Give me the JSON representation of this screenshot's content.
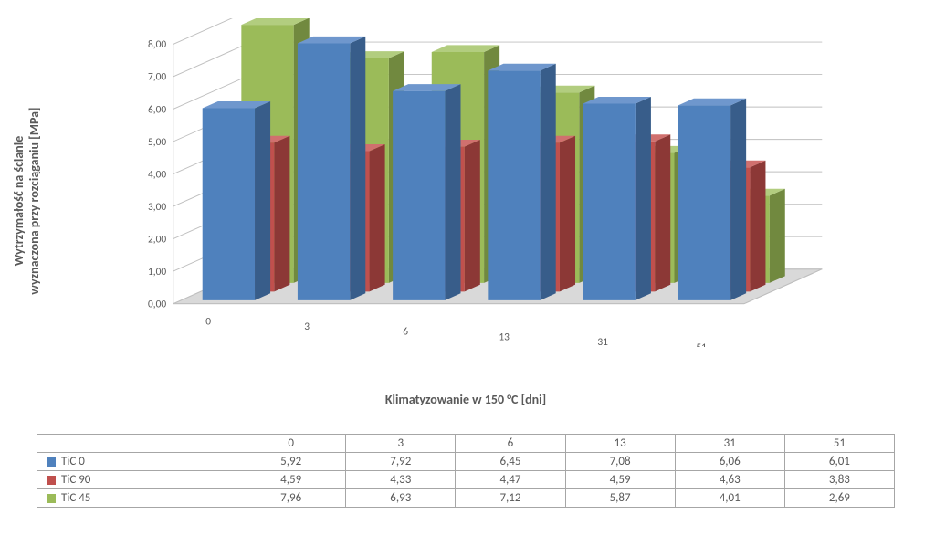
{
  "chart": {
    "type": "bar3d",
    "y_axis_label": "Wytrzymałość na ścianie\nwyznaczona przy rozciąganiu [MPa]",
    "x_axis_label": "Klimatyzowanie w 150 °C [dni]",
    "ylim": [
      0,
      8
    ],
    "ytick_step": 1.0,
    "y_ticks": [
      "0,00",
      "1,00",
      "2,00",
      "3,00",
      "4,00",
      "5,00",
      "6,00",
      "7,00",
      "8,00"
    ],
    "categories": [
      "0",
      "3",
      "6",
      "13",
      "31",
      "51"
    ],
    "series": [
      {
        "name": "TiC 0",
        "color": "#4f81bd",
        "side": "#385d8a",
        "top": "#6f97cd",
        "values": [
          5.92,
          7.92,
          6.45,
          7.08,
          6.06,
          6.01
        ],
        "display": [
          "5,92",
          "7,92",
          "6,45",
          "7,08",
          "6,06",
          "6,01"
        ]
      },
      {
        "name": "TiC 90",
        "color": "#c0504d",
        "side": "#8c3836",
        "top": "#d0706e",
        "values": [
          4.59,
          4.33,
          4.47,
          4.59,
          4.63,
          3.83
        ],
        "display": [
          "4,59",
          "4,33",
          "4,47",
          "4,59",
          "4,63",
          "3,83"
        ]
      },
      {
        "name": "TiC 45",
        "color": "#9bbb59",
        "side": "#71893f",
        "top": "#b2cd7f",
        "values": [
          7.96,
          6.93,
          7.12,
          5.87,
          4.01,
          2.69
        ],
        "display": [
          "7,96",
          "6,93",
          "7,12",
          "5,87",
          "4,01",
          "2,69"
        ]
      }
    ],
    "background_color": "#ffffff",
    "floor_color": "#d9d9d9",
    "grid_color": "#bfbfbf",
    "tick_fontsize": 12,
    "label_fontsize": 14
  }
}
